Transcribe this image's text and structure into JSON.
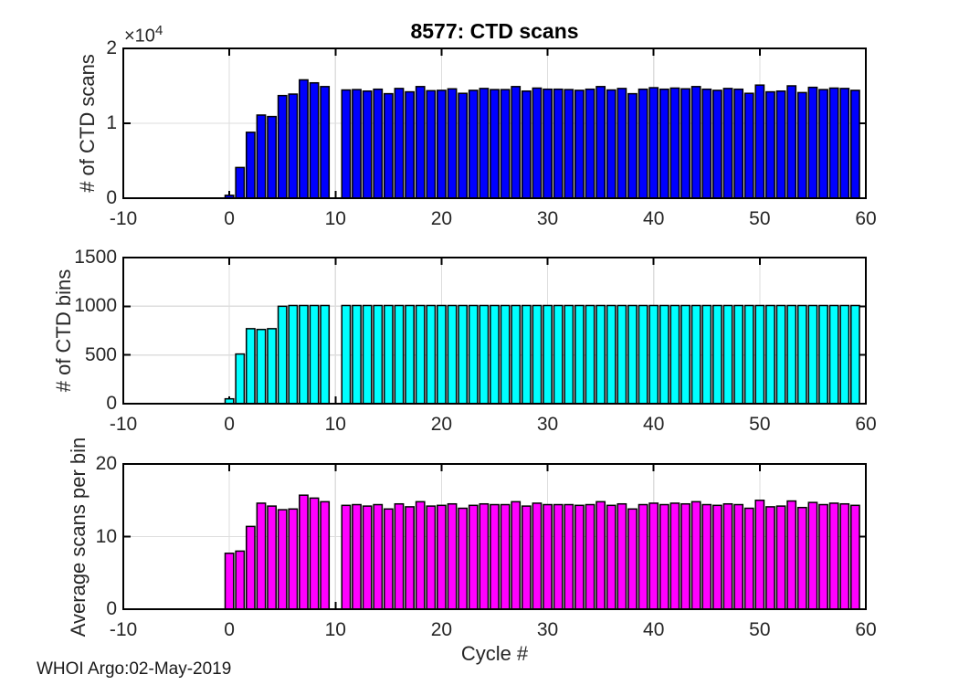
{
  "figure": {
    "title": "8577: CTD scans",
    "x_axis_label": "Cycle #",
    "footer": "WHOI Argo:02-May-2019",
    "exponent_prefix": "×10",
    "exponent_power": "4",
    "xlim": [
      -10,
      60
    ],
    "x_ticks": [
      -10,
      0,
      10,
      20,
      30,
      40,
      50,
      60
    ],
    "x_tick_labels": [
      "-10",
      "0",
      "10",
      "20",
      "30",
      "40",
      "50",
      "60"
    ],
    "grid": true,
    "legend": "none",
    "colors": {
      "scans_bar": "#0000FF",
      "bins_bar": "#00FFFF",
      "avg_bar": "#FF00FF",
      "bar_edge": "#000000",
      "axis": "#000000",
      "grid": "#DEDEDE",
      "text": "#262626"
    }
  },
  "chart_data": [
    {
      "type": "bar",
      "name": "ctd-scans",
      "ylabel": "# of CTD scans",
      "color": "#0000FF",
      "ylim": [
        0,
        20000
      ],
      "yticks": [
        0,
        10000,
        20000
      ],
      "ytick_labels": [
        "0",
        "1",
        "2"
      ],
      "y_scale_note": "labels are in units of 1e4",
      "cycles": [
        0,
        1,
        2,
        3,
        4,
        5,
        6,
        7,
        8,
        9,
        11,
        12,
        13,
        14,
        15,
        16,
        17,
        18,
        19,
        20,
        21,
        22,
        23,
        24,
        25,
        26,
        27,
        28,
        29,
        30,
        31,
        32,
        33,
        34,
        35,
        36,
        37,
        38,
        39,
        40,
        41,
        42,
        43,
        44,
        45,
        46,
        47,
        48,
        49,
        50,
        51,
        52,
        53,
        54,
        55,
        56,
        57,
        58,
        59
      ],
      "values": [
        385,
        4100,
        8800,
        11100,
        10900,
        13700,
        13900,
        15800,
        15400,
        14900,
        14450,
        14500,
        14300,
        14550,
        13950,
        14650,
        14200,
        14900,
        14350,
        14400,
        14600,
        14000,
        14400,
        14650,
        14500,
        14500,
        14900,
        14300,
        14700,
        14550,
        14550,
        14500,
        14400,
        14550,
        14900,
        14450,
        14650,
        13950,
        14550,
        14750,
        14550,
        14700,
        14600,
        14900,
        14550,
        14400,
        14650,
        14550,
        14000,
        15100,
        14200,
        14300,
        15000,
        14100,
        14800,
        14500,
        14700,
        14650,
        14400
      ]
    },
    {
      "type": "bar",
      "name": "ctd-bins",
      "ylabel": "# of CTD bins",
      "color": "#00FFFF",
      "ylim": [
        0,
        1500
      ],
      "yticks": [
        0,
        500,
        1000,
        1500
      ],
      "ytick_labels": [
        "0",
        "500",
        "1000",
        "1500"
      ],
      "cycles": [
        0,
        1,
        2,
        3,
        4,
        5,
        6,
        7,
        8,
        9,
        11,
        12,
        13,
        14,
        15,
        16,
        17,
        18,
        19,
        20,
        21,
        22,
        23,
        24,
        25,
        26,
        27,
        28,
        29,
        30,
        31,
        32,
        33,
        34,
        35,
        36,
        37,
        38,
        39,
        40,
        41,
        42,
        43,
        44,
        45,
        46,
        47,
        48,
        49,
        50,
        51,
        52,
        53,
        54,
        55,
        56,
        57,
        58,
        59
      ],
      "values": [
        50,
        510,
        770,
        762,
        770,
        1000,
        1008,
        1008,
        1008,
        1008,
        1008,
        1008,
        1008,
        1008,
        1008,
        1008,
        1008,
        1008,
        1008,
        1008,
        1008,
        1008,
        1008,
        1008,
        1008,
        1008,
        1008,
        1008,
        1008,
        1008,
        1008,
        1008,
        1008,
        1008,
        1008,
        1008,
        1008,
        1008,
        1008,
        1008,
        1008,
        1008,
        1008,
        1008,
        1008,
        1008,
        1008,
        1008,
        1008,
        1008,
        1008,
        1008,
        1008,
        1008,
        1008,
        1008,
        1008,
        1008,
        1008
      ]
    },
    {
      "type": "bar",
      "name": "avg-scans-per-bin",
      "ylabel": "Average scans per bin",
      "color": "#FF00FF",
      "ylim": [
        0,
        20
      ],
      "yticks": [
        0,
        10,
        20
      ],
      "ytick_labels": [
        "0",
        "10",
        "20"
      ],
      "cycles": [
        0,
        1,
        2,
        3,
        4,
        5,
        6,
        7,
        8,
        9,
        11,
        12,
        13,
        14,
        15,
        16,
        17,
        18,
        19,
        20,
        21,
        22,
        23,
        24,
        25,
        26,
        27,
        28,
        29,
        30,
        31,
        32,
        33,
        34,
        35,
        36,
        37,
        38,
        39,
        40,
        41,
        42,
        43,
        44,
        45,
        46,
        47,
        48,
        49,
        50,
        51,
        52,
        53,
        54,
        55,
        56,
        57,
        58,
        59
      ],
      "values": [
        7.7,
        8.0,
        11.4,
        14.6,
        14.2,
        13.7,
        13.8,
        15.7,
        15.3,
        14.8,
        14.3,
        14.4,
        14.2,
        14.4,
        13.8,
        14.5,
        14.1,
        14.8,
        14.2,
        14.3,
        14.5,
        13.9,
        14.3,
        14.5,
        14.4,
        14.4,
        14.8,
        14.2,
        14.6,
        14.4,
        14.4,
        14.4,
        14.3,
        14.4,
        14.8,
        14.3,
        14.5,
        13.8,
        14.4,
        14.6,
        14.4,
        14.6,
        14.5,
        14.8,
        14.4,
        14.3,
        14.5,
        14.4,
        13.9,
        15.0,
        14.1,
        14.2,
        14.9,
        14.0,
        14.7,
        14.4,
        14.6,
        14.5,
        14.3
      ]
    }
  ]
}
